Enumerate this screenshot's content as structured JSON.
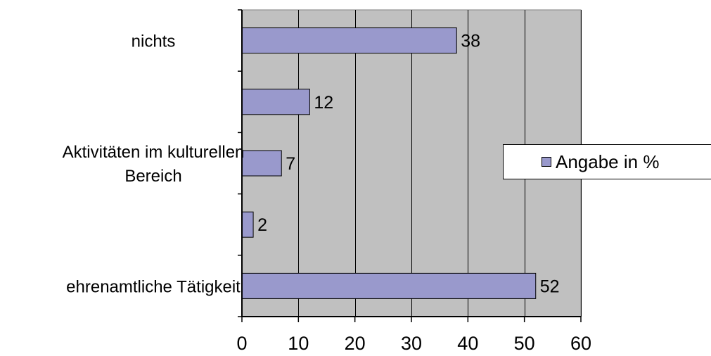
{
  "chart_data": {
    "type": "bar",
    "orientation": "horizontal",
    "categories": [
      "ehrenamtliche Tätigkeit",
      "",
      "Aktivitäten im kulturellen Bereich",
      "",
      "nichts"
    ],
    "category_label_lines": [
      [
        "ehrenamtliche Tätigkeit"
      ],
      [],
      [
        "Aktivitäten im kulturellen",
        "Bereich"
      ],
      [],
      [
        "nichts"
      ]
    ],
    "series": [
      {
        "name": "Angabe in %",
        "values": [
          52,
          2,
          7,
          12,
          38
        ]
      }
    ],
    "data_labels": [
      "52",
      "2",
      "7",
      "12",
      "38"
    ],
    "xlim": [
      0,
      60
    ],
    "x_ticks": [
      0,
      10,
      20,
      30,
      40,
      50,
      60
    ],
    "x_tick_labels": [
      "0",
      "10",
      "20",
      "30",
      "40",
      "50",
      "60"
    ],
    "grid": true,
    "legend_position": "right",
    "colors": {
      "bar": "#9999cc",
      "plot_background": "#c0c0c0",
      "axis": "#000000"
    }
  }
}
